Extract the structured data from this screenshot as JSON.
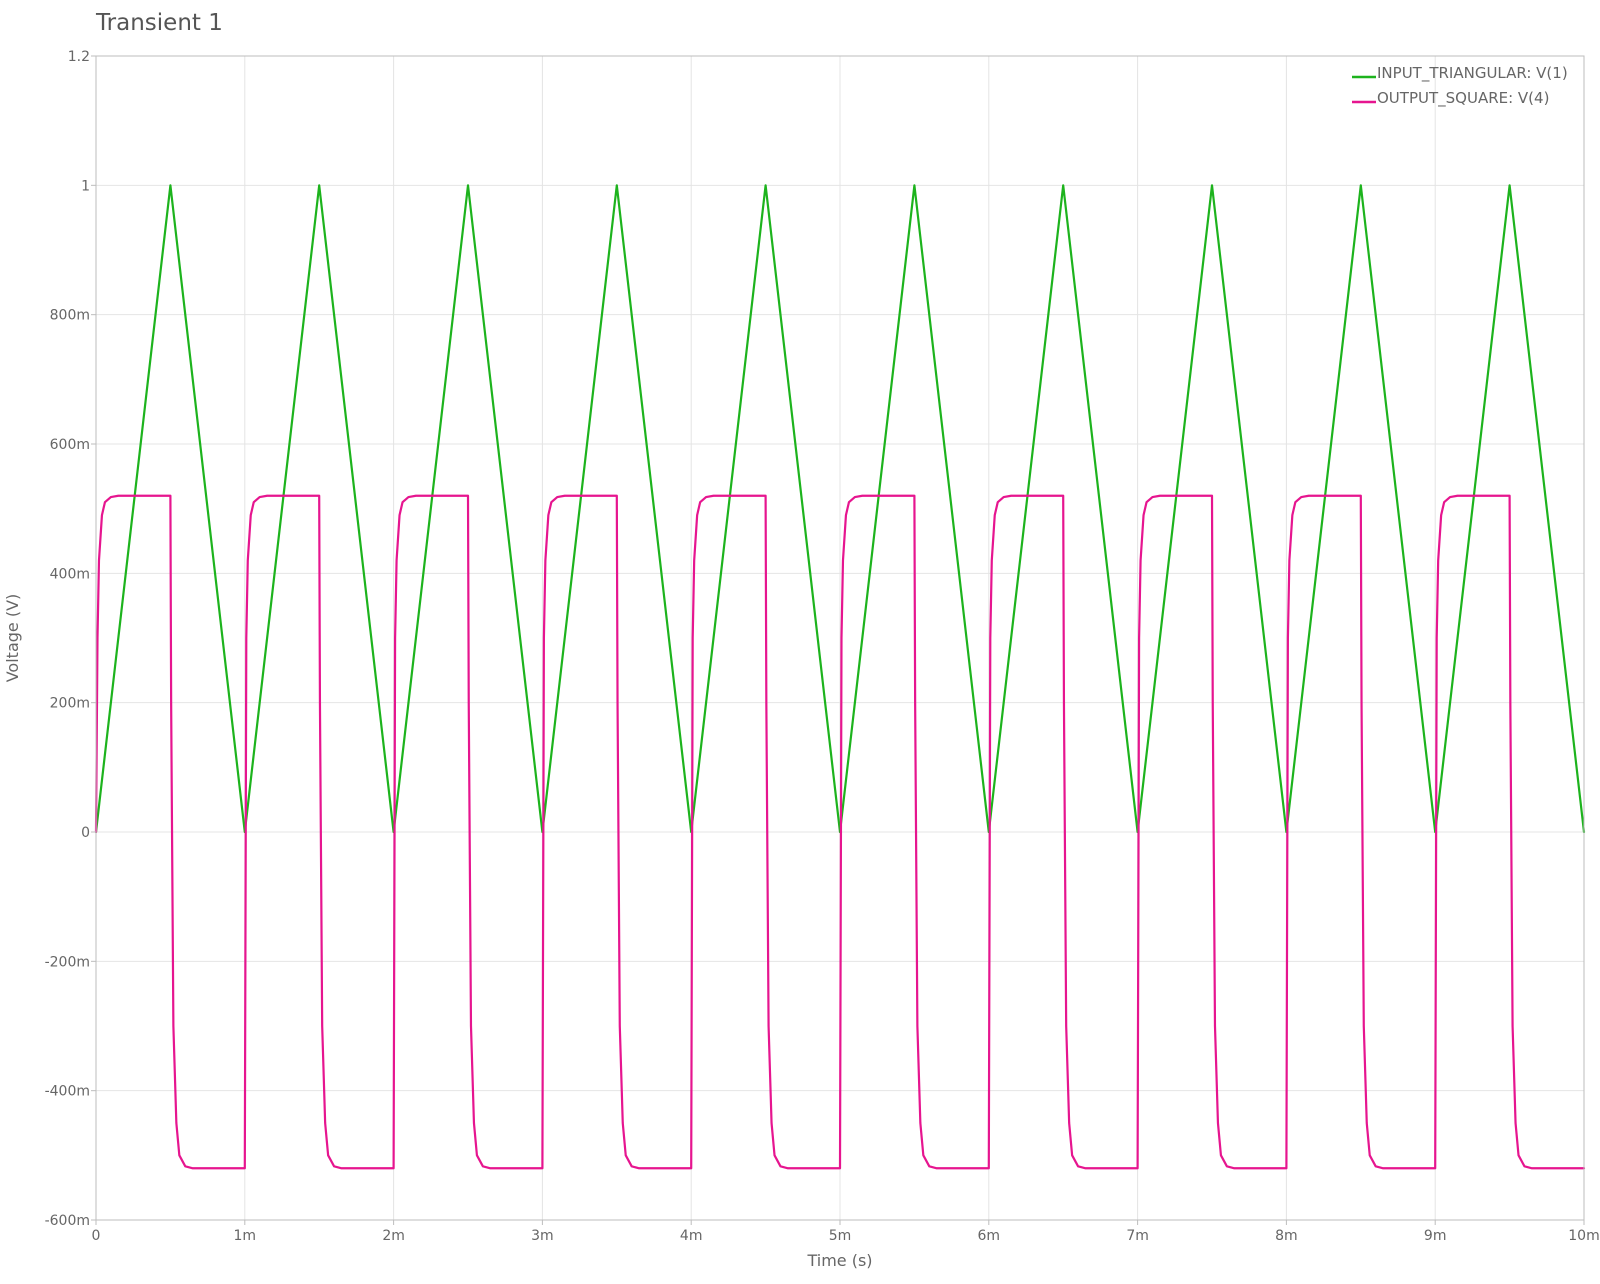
{
  "title": "Transient 1",
  "chart_data": {
    "type": "line",
    "title": "Transient 1",
    "xlabel": "Time (s)",
    "ylabel": "Voltage (V)",
    "xlim": [
      0,
      0.01
    ],
    "ylim": [
      -0.6,
      1.2
    ],
    "grid": true,
    "legend_position": "top-right",
    "x_ticks": [
      {
        "value": 0,
        "label": "0"
      },
      {
        "value": 0.001,
        "label": "1m"
      },
      {
        "value": 0.002,
        "label": "2m"
      },
      {
        "value": 0.003,
        "label": "3m"
      },
      {
        "value": 0.004,
        "label": "4m"
      },
      {
        "value": 0.005,
        "label": "5m"
      },
      {
        "value": 0.006,
        "label": "6m"
      },
      {
        "value": 0.007,
        "label": "7m"
      },
      {
        "value": 0.008,
        "label": "8m"
      },
      {
        "value": 0.009,
        "label": "9m"
      },
      {
        "value": 0.01,
        "label": "10m"
      }
    ],
    "y_ticks": [
      {
        "value": 1.2,
        "label": "1.2"
      },
      {
        "value": 1.0,
        "label": "1"
      },
      {
        "value": 0.8,
        "label": "800m"
      },
      {
        "value": 0.6,
        "label": "600m"
      },
      {
        "value": 0.4,
        "label": "400m"
      },
      {
        "value": 0.2,
        "label": "200m"
      },
      {
        "value": 0,
        "label": "0"
      },
      {
        "value": -0.2,
        "label": "-200m"
      },
      {
        "value": -0.4,
        "label": "-400m"
      },
      {
        "value": -0.6,
        "label": "-600m"
      }
    ],
    "series": [
      {
        "name": "INPUT_TRIANGULAR: V(1)",
        "color": "#1db31d",
        "x": [
          0,
          0.0005,
          0.001,
          0.0015,
          0.002,
          0.0025,
          0.003,
          0.0035,
          0.004,
          0.0045,
          0.005,
          0.0055,
          0.006,
          0.0065,
          0.007,
          0.0075,
          0.008,
          0.0085,
          0.009,
          0.0095,
          0.01
        ],
        "y": [
          0,
          1,
          0,
          1,
          0,
          1,
          0,
          1,
          0,
          1,
          0,
          1,
          0,
          1,
          0,
          1,
          0,
          1,
          0,
          1,
          0
        ]
      },
      {
        "name": "OUTPUT_SQUARE: V(4)",
        "color": "#e6158f",
        "x": [
          0,
          1e-05,
          2e-05,
          4e-05,
          6e-05,
          0.0001,
          0.00015,
          0.0005,
          0.000505,
          0.00052,
          0.00054,
          0.00056,
          0.0006,
          0.00065,
          0.001,
          0.001,
          0.00101,
          0.00102,
          0.00104,
          0.00106,
          0.0011,
          0.00115,
          0.0015,
          0.001505,
          0.00152,
          0.00154,
          0.00156,
          0.0016,
          0.00165,
          0.002,
          0.002,
          0.00201,
          0.00202,
          0.00204,
          0.00206,
          0.0021,
          0.00215,
          0.0025,
          0.002505,
          0.00252,
          0.00254,
          0.00256,
          0.0026,
          0.00265,
          0.003,
          0.003,
          0.00301,
          0.00302,
          0.00304,
          0.00306,
          0.0031,
          0.00315,
          0.0035,
          0.003505,
          0.00352,
          0.00354,
          0.00356,
          0.0036,
          0.00365,
          0.004,
          0.004,
          0.00401,
          0.00402,
          0.00404,
          0.00406,
          0.0041,
          0.00415,
          0.0045,
          0.004505,
          0.00452,
          0.00454,
          0.00456,
          0.0046,
          0.00465,
          0.005,
          0.005,
          0.00501,
          0.00502,
          0.00504,
          0.00506,
          0.0051,
          0.00515,
          0.0055,
          0.005505,
          0.00552,
          0.00554,
          0.00556,
          0.0056,
          0.00565,
          0.006,
          0.006,
          0.00601,
          0.00602,
          0.00604,
          0.00606,
          0.0061,
          0.00615,
          0.0065,
          0.006505,
          0.00652,
          0.00654,
          0.00656,
          0.0066,
          0.00665,
          0.007,
          0.007,
          0.00701,
          0.00702,
          0.00704,
          0.00706,
          0.0071,
          0.00715,
          0.0075,
          0.007505,
          0.00752,
          0.00754,
          0.00756,
          0.0076,
          0.00765,
          0.008,
          0.008,
          0.00801,
          0.00802,
          0.00804,
          0.00806,
          0.0081,
          0.00815,
          0.0085,
          0.008505,
          0.00852,
          0.00854,
          0.00856,
          0.0086,
          0.00865,
          0.009,
          0.009,
          0.00901,
          0.00902,
          0.00904,
          0.00906,
          0.0091,
          0.00915,
          0.0095,
          0.009505,
          0.00952,
          0.00954,
          0.00956,
          0.0096,
          0.00965,
          0.01
        ],
        "y": [
          0,
          0.3,
          0.42,
          0.49,
          0.51,
          0.518,
          0.52,
          0.52,
          0.2,
          -0.3,
          -0.45,
          -0.5,
          -0.517,
          -0.52,
          -0.52,
          -0.52,
          0.3,
          0.42,
          0.49,
          0.51,
          0.518,
          0.52,
          0.52,
          0.2,
          -0.3,
          -0.45,
          -0.5,
          -0.517,
          -0.52,
          -0.52,
          -0.52,
          0.3,
          0.42,
          0.49,
          0.51,
          0.518,
          0.52,
          0.52,
          0.2,
          -0.3,
          -0.45,
          -0.5,
          -0.517,
          -0.52,
          -0.52,
          -0.52,
          0.3,
          0.42,
          0.49,
          0.51,
          0.518,
          0.52,
          0.52,
          0.2,
          -0.3,
          -0.45,
          -0.5,
          -0.517,
          -0.52,
          -0.52,
          -0.52,
          0.3,
          0.42,
          0.49,
          0.51,
          0.518,
          0.52,
          0.52,
          0.2,
          -0.3,
          -0.45,
          -0.5,
          -0.517,
          -0.52,
          -0.52,
          -0.52,
          0.3,
          0.42,
          0.49,
          0.51,
          0.518,
          0.52,
          0.52,
          0.2,
          -0.3,
          -0.45,
          -0.5,
          -0.517,
          -0.52,
          -0.52,
          -0.52,
          0.3,
          0.42,
          0.49,
          0.51,
          0.518,
          0.52,
          0.52,
          0.2,
          -0.3,
          -0.45,
          -0.5,
          -0.517,
          -0.52,
          -0.52,
          -0.52,
          0.3,
          0.42,
          0.49,
          0.51,
          0.518,
          0.52,
          0.52,
          0.2,
          -0.3,
          -0.45,
          -0.5,
          -0.517,
          -0.52,
          -0.52,
          -0.52,
          0.3,
          0.42,
          0.49,
          0.51,
          0.518,
          0.52,
          0.52,
          0.2,
          -0.3,
          -0.45,
          -0.5,
          -0.517,
          -0.52,
          -0.52,
          -0.52,
          0.3,
          0.42,
          0.49,
          0.51,
          0.518,
          0.52,
          0.52,
          0.2,
          -0.3,
          -0.45,
          -0.5,
          -0.517,
          -0.52,
          -0.52
        ]
      }
    ]
  }
}
